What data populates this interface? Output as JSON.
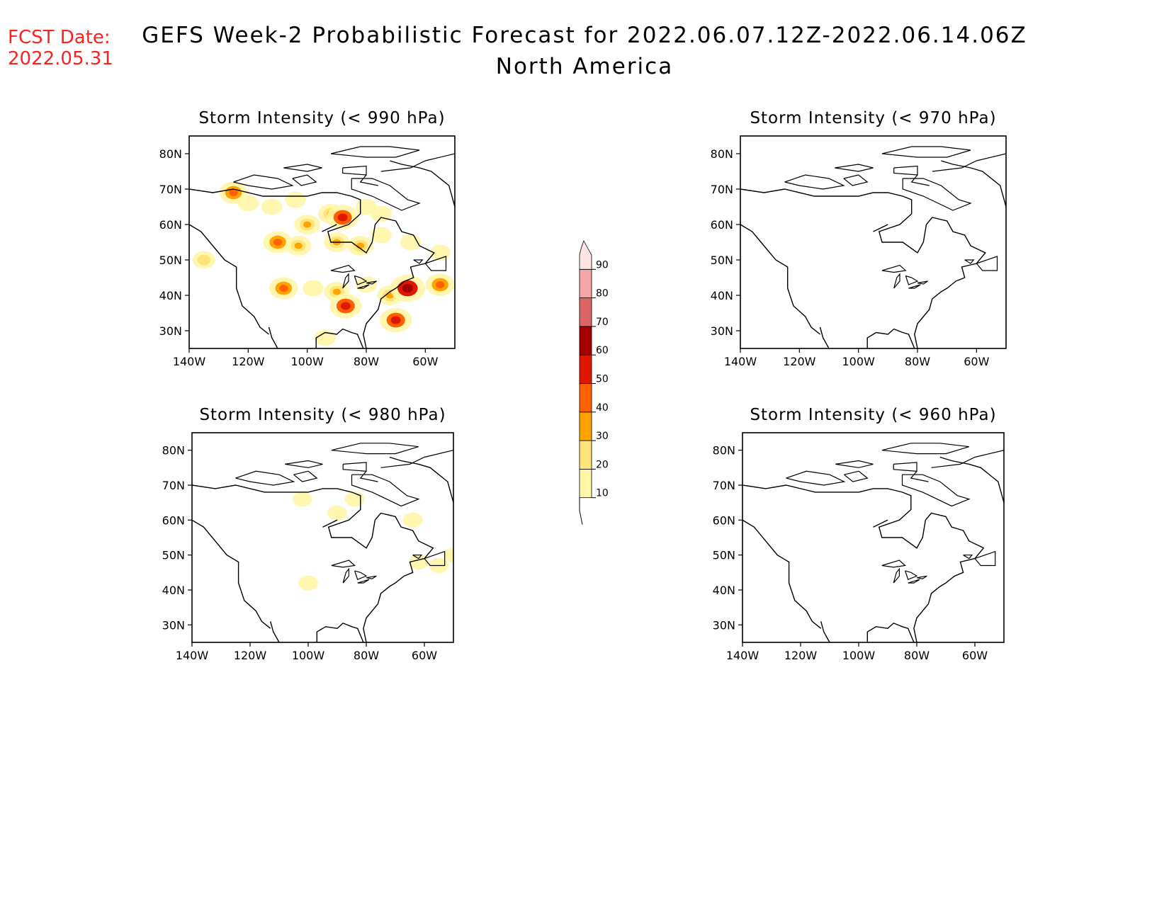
{
  "header": {
    "fcst_label": "FCST Date:",
    "fcst_date": "2022.05.31",
    "title": "GEFS Week-2 Probabilistic Forecast for 2022.06.07.12Z-2022.06.14.06Z",
    "subtitle": "North America"
  },
  "axes": {
    "lat_labels": [
      "80N",
      "70N",
      "60N",
      "50N",
      "40N",
      "30N"
    ],
    "lon_labels": [
      "140W",
      "120W",
      "100W",
      "80W",
      "60W"
    ]
  },
  "panels": [
    {
      "title": "Storm Intensity (< 990 hPa)",
      "threshold_hpa": 990
    },
    {
      "title": "Storm Intensity (< 970 hPa)",
      "threshold_hpa": 970
    },
    {
      "title": "Storm Intensity (< 980 hPa)",
      "threshold_hpa": 980
    },
    {
      "title": "Storm Intensity (< 960 hPa)",
      "threshold_hpa": 960
    }
  ],
  "colorbar": {
    "levels": [
      "10",
      "20",
      "30",
      "40",
      "50",
      "60",
      "70",
      "80",
      "90"
    ],
    "colors": [
      "#fff6a8",
      "#fde57a",
      "#ffa300",
      "#ff6000",
      "#e11600",
      "#a50000",
      "#dd6464",
      "#f3a7a7",
      "#fde4e4"
    ]
  },
  "chart_data": {
    "type": "heatmap",
    "units": "probability (%)",
    "lon_range": [
      -140,
      -50
    ],
    "lat_range": [
      25,
      85
    ],
    "panels": [
      {
        "threshold_hpa": 990,
        "cells": [
          {
            "lon": -125,
            "lat": 69,
            "prob": 40
          },
          {
            "lon": -120,
            "lat": 66,
            "prob": 15
          },
          {
            "lon": -112,
            "lat": 65,
            "prob": 15
          },
          {
            "lon": -104,
            "lat": 67,
            "prob": 15
          },
          {
            "lon": -92,
            "lat": 63,
            "prob": 30
          },
          {
            "lon": -88,
            "lat": 62,
            "prob": 50
          },
          {
            "lon": -80,
            "lat": 65,
            "prob": 15
          },
          {
            "lon": -75,
            "lat": 63,
            "prob": 15
          },
          {
            "lon": -100,
            "lat": 60,
            "prob": 30
          },
          {
            "lon": -110,
            "lat": 55,
            "prob": 40
          },
          {
            "lon": -103,
            "lat": 54,
            "prob": 30
          },
          {
            "lon": -90,
            "lat": 55,
            "prob": 30
          },
          {
            "lon": -82,
            "lat": 54,
            "prob": 30
          },
          {
            "lon": -75,
            "lat": 57,
            "prob": 15
          },
          {
            "lon": -65,
            "lat": 55,
            "prob": 15
          },
          {
            "lon": -55,
            "lat": 52,
            "prob": 15
          },
          {
            "lon": -135,
            "lat": 50,
            "prob": 20
          },
          {
            "lon": -108,
            "lat": 42,
            "prob": 40
          },
          {
            "lon": -98,
            "lat": 42,
            "prob": 15
          },
          {
            "lon": -90,
            "lat": 41,
            "prob": 30
          },
          {
            "lon": -87,
            "lat": 37,
            "prob": 50
          },
          {
            "lon": -72,
            "lat": 40,
            "prob": 30
          },
          {
            "lon": -66,
            "lat": 42,
            "prob": 60
          },
          {
            "lon": -55,
            "lat": 43,
            "prob": 40
          },
          {
            "lon": -70,
            "lat": 33,
            "prob": 50
          },
          {
            "lon": -94,
            "lat": 28,
            "prob": 15
          },
          {
            "lon": -80,
            "lat": 43,
            "prob": 15
          }
        ]
      },
      {
        "threshold_hpa": 970,
        "cells": []
      },
      {
        "threshold_hpa": 980,
        "cells": [
          {
            "lon": -102,
            "lat": 66,
            "prob": 10
          },
          {
            "lon": -90,
            "lat": 62,
            "prob": 10
          },
          {
            "lon": -84,
            "lat": 66,
            "prob": 10
          },
          {
            "lon": -64,
            "lat": 60,
            "prob": 10
          },
          {
            "lon": -100,
            "lat": 42,
            "prob": 10
          },
          {
            "lon": -62,
            "lat": 48,
            "prob": 10
          },
          {
            "lon": -55,
            "lat": 47,
            "prob": 10
          },
          {
            "lon": -50,
            "lat": 50,
            "prob": 10
          }
        ]
      },
      {
        "threshold_hpa": 960,
        "cells": []
      }
    ]
  }
}
